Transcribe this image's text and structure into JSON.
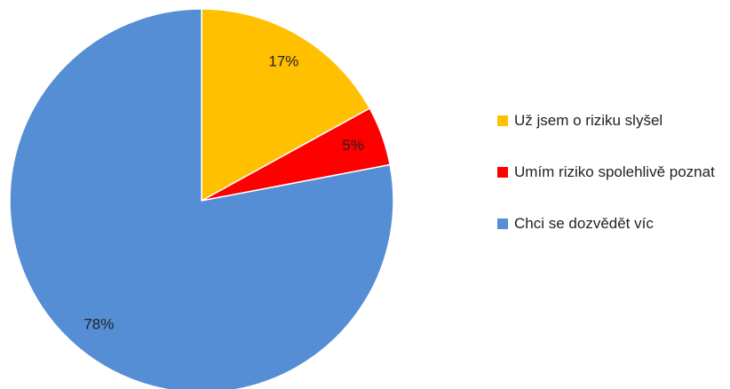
{
  "chart_data": {
    "type": "pie",
    "categories": [
      "Už jsem o riziku slyšel",
      "Umím riziko spolehlivě poznat",
      "Chci se dozvědět víc"
    ],
    "values": [
      17,
      5,
      78
    ],
    "value_labels": [
      "17%",
      "5%",
      "78%"
    ],
    "colors": [
      "#FFC000",
      "#FF0000",
      "#558ED5"
    ],
    "legend": "right"
  }
}
